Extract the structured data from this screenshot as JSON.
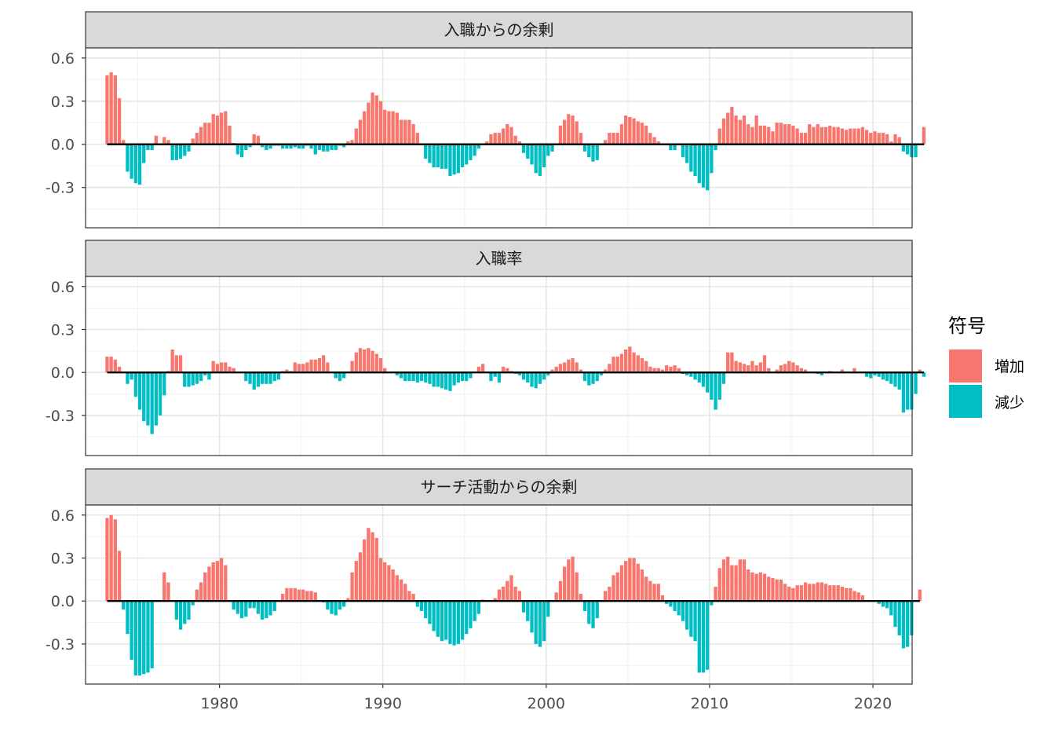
{
  "chart_data": {
    "type": "bar",
    "x_unit": "year (quarterly)",
    "x_start": 1973.0,
    "x_step": 0.25,
    "xlim": [
      1971.8,
      2022.4
    ],
    "ylim": [
      -0.58,
      0.67
    ],
    "x_ticks": [
      1980,
      1990,
      2000,
      2010,
      2020
    ],
    "x_tick_labels": [
      "1980",
      "1990",
      "2000",
      "2010",
      "2020"
    ],
    "y_ticks": [
      0.6,
      0.3,
      0.0,
      -0.3
    ],
    "y_tick_labels": [
      "0.6",
      "0.3",
      "0.0",
      "-0.3"
    ],
    "grid": true,
    "legend": {
      "title": "符号",
      "position": "right",
      "entries": [
        {
          "label": "増加",
          "color": "#F8766D"
        },
        {
          "label": "減少",
          "color": "#00BFC4"
        }
      ]
    },
    "panels": [
      {
        "title": "入職からの余剰",
        "values": [
          0.48,
          0.5,
          0.48,
          0.32,
          0.03,
          -0.19,
          -0.24,
          -0.27,
          -0.28,
          -0.13,
          -0.04,
          -0.04,
          0.06,
          0.0,
          0.05,
          0.03,
          -0.11,
          -0.11,
          -0.1,
          -0.08,
          -0.05,
          0.04,
          0.08,
          0.12,
          0.15,
          0.15,
          0.21,
          0.2,
          0.22,
          0.23,
          0.13,
          0.01,
          -0.07,
          -0.09,
          -0.04,
          -0.02,
          0.07,
          0.06,
          -0.02,
          -0.04,
          -0.03,
          -0.01,
          -0.01,
          -0.03,
          -0.03,
          -0.03,
          -0.02,
          -0.03,
          -0.03,
          -0.01,
          -0.03,
          -0.07,
          -0.04,
          -0.05,
          -0.05,
          -0.04,
          -0.04,
          -0.01,
          -0.02,
          0.02,
          0.03,
          0.11,
          0.17,
          0.23,
          0.29,
          0.36,
          0.34,
          0.3,
          0.24,
          0.23,
          0.23,
          0.22,
          0.17,
          0.17,
          0.17,
          0.14,
          0.08,
          0.0,
          -0.1,
          -0.13,
          -0.16,
          -0.16,
          -0.17,
          -0.17,
          -0.22,
          -0.21,
          -0.2,
          -0.16,
          -0.14,
          -0.11,
          -0.08,
          -0.03,
          0.0,
          0.02,
          0.07,
          0.08,
          0.08,
          0.11,
          0.14,
          0.12,
          0.06,
          0.02,
          -0.06,
          -0.1,
          -0.14,
          -0.2,
          -0.22,
          -0.16,
          -0.08,
          -0.05,
          0.0,
          0.13,
          0.17,
          0.21,
          0.2,
          0.16,
          0.08,
          -0.05,
          -0.09,
          -0.12,
          -0.11,
          0.0,
          0.03,
          0.08,
          0.08,
          0.08,
          0.14,
          0.2,
          0.19,
          0.18,
          0.16,
          0.15,
          0.13,
          0.08,
          0.05,
          0.02,
          0.0,
          0.0,
          -0.04,
          -0.04,
          0.0,
          -0.09,
          -0.13,
          -0.19,
          -0.22,
          -0.27,
          -0.3,
          -0.32,
          -0.2,
          -0.04,
          0.11,
          0.18,
          0.22,
          0.26,
          0.2,
          0.17,
          0.2,
          0.14,
          0.12,
          0.2,
          0.13,
          0.13,
          0.12,
          0.09,
          0.15,
          0.15,
          0.14,
          0.14,
          0.13,
          0.11,
          0.08,
          0.08,
          0.14,
          0.12,
          0.14,
          0.12,
          0.12,
          0.13,
          0.12,
          0.12,
          0.11,
          0.1,
          0.11,
          0.11,
          0.11,
          0.12,
          0.1,
          0.08,
          0.09,
          0.08,
          0.08,
          0.07,
          0.02,
          0.07,
          0.05,
          -0.05,
          -0.07,
          -0.09,
          -0.09,
          0.0,
          0.12
        ]
      },
      {
        "title": "入職率",
        "values": [
          0.11,
          0.11,
          0.09,
          0.04,
          0.0,
          -0.08,
          -0.05,
          -0.17,
          -0.26,
          -0.34,
          -0.37,
          -0.43,
          -0.37,
          -0.3,
          -0.16,
          0.01,
          0.16,
          0.12,
          0.12,
          -0.1,
          -0.1,
          -0.09,
          -0.08,
          -0.06,
          -0.02,
          -0.05,
          0.08,
          0.06,
          0.07,
          0.07,
          0.04,
          0.03,
          0.0,
          0.0,
          -0.06,
          -0.08,
          -0.12,
          -0.1,
          -0.08,
          -0.08,
          -0.08,
          -0.06,
          -0.05,
          0.01,
          0.02,
          0.01,
          0.07,
          0.06,
          0.06,
          0.07,
          0.09,
          0.09,
          0.1,
          0.12,
          0.07,
          0.0,
          -0.04,
          -0.06,
          -0.04,
          0.0,
          0.08,
          0.14,
          0.17,
          0.16,
          0.17,
          0.15,
          0.13,
          0.1,
          0.03,
          0.0,
          0.0,
          -0.02,
          -0.04,
          -0.06,
          -0.06,
          -0.06,
          -0.07,
          -0.06,
          -0.07,
          -0.08,
          -0.1,
          -0.1,
          -0.11,
          -0.12,
          -0.13,
          -0.09,
          -0.07,
          -0.06,
          -0.06,
          -0.04,
          0.0,
          0.04,
          0.06,
          0.0,
          -0.06,
          -0.03,
          -0.07,
          0.04,
          0.03,
          0.01,
          -0.01,
          -0.02,
          -0.05,
          -0.07,
          -0.1,
          -0.11,
          -0.08,
          -0.05,
          -0.02,
          0.02,
          0.04,
          0.06,
          0.07,
          0.09,
          0.1,
          0.07,
          0.02,
          -0.06,
          -0.09,
          -0.08,
          -0.06,
          -0.02,
          0.02,
          0.06,
          0.11,
          0.11,
          0.13,
          0.16,
          0.18,
          0.14,
          0.12,
          0.1,
          0.08,
          0.04,
          0.03,
          0.03,
          0.02,
          0.05,
          0.04,
          0.05,
          0.03,
          -0.01,
          -0.02,
          -0.03,
          -0.05,
          -0.07,
          -0.1,
          -0.14,
          -0.19,
          -0.26,
          -0.19,
          -0.08,
          0.14,
          0.14,
          0.08,
          0.07,
          0.06,
          0.05,
          0.08,
          0.05,
          0.07,
          0.12,
          0.03,
          0.0,
          0.02,
          0.05,
          0.06,
          0.08,
          0.07,
          0.05,
          0.03,
          0.02,
          0.0,
          0.0,
          -0.01,
          -0.02,
          0.0,
          0.01,
          0.0,
          0.0,
          0.02,
          0.0,
          0.0,
          0.03,
          0.0,
          0.0,
          -0.03,
          -0.04,
          -0.02,
          -0.03,
          -0.05,
          -0.06,
          -0.08,
          -0.1,
          -0.12,
          -0.28,
          -0.26,
          -0.26,
          -0.15,
          0.02,
          -0.03
        ]
      },
      {
        "title": "サーチ活動からの余剰",
        "values": [
          0.58,
          0.6,
          0.57,
          0.35,
          -0.06,
          -0.23,
          -0.41,
          -0.52,
          -0.52,
          -0.51,
          -0.5,
          -0.47,
          0.0,
          0.0,
          0.2,
          0.13,
          0.0,
          -0.13,
          -0.2,
          -0.16,
          -0.13,
          -0.03,
          0.08,
          0.13,
          0.2,
          0.24,
          0.27,
          0.28,
          0.3,
          0.25,
          0.0,
          -0.06,
          -0.09,
          -0.12,
          -0.11,
          -0.05,
          -0.05,
          -0.09,
          -0.13,
          -0.12,
          -0.1,
          -0.07,
          0.0,
          0.05,
          0.09,
          0.09,
          0.09,
          0.08,
          0.08,
          0.07,
          0.07,
          0.06,
          0.0,
          -0.01,
          -0.06,
          -0.09,
          -0.1,
          -0.06,
          -0.04,
          0.02,
          0.2,
          0.28,
          0.34,
          0.43,
          0.51,
          0.48,
          0.44,
          0.3,
          0.27,
          0.25,
          0.22,
          0.18,
          0.15,
          0.12,
          0.07,
          0.05,
          -0.04,
          -0.07,
          -0.12,
          -0.16,
          -0.21,
          -0.25,
          -0.28,
          -0.27,
          -0.3,
          -0.31,
          -0.3,
          -0.27,
          -0.23,
          -0.19,
          -0.14,
          -0.09,
          0.01,
          0.0,
          0.0,
          0.02,
          0.08,
          0.1,
          0.14,
          0.18,
          0.1,
          0.07,
          -0.08,
          -0.14,
          -0.22,
          -0.3,
          -0.32,
          -0.28,
          -0.11,
          0.0,
          0.06,
          0.14,
          0.24,
          0.29,
          0.31,
          0.2,
          0.05,
          -0.07,
          -0.16,
          -0.19,
          -0.12,
          0.0,
          0.07,
          0.1,
          0.18,
          0.2,
          0.25,
          0.28,
          0.3,
          0.3,
          0.26,
          0.22,
          0.17,
          0.14,
          0.12,
          0.12,
          0.04,
          -0.02,
          -0.04,
          -0.07,
          -0.1,
          -0.14,
          -0.2,
          -0.25,
          -0.28,
          -0.5,
          -0.5,
          -0.48,
          -0.03,
          0.1,
          0.23,
          0.29,
          0.31,
          0.25,
          0.25,
          0.29,
          0.29,
          0.22,
          0.2,
          0.19,
          0.2,
          0.19,
          0.17,
          0.16,
          0.15,
          0.15,
          0.12,
          0.1,
          0.09,
          0.11,
          0.11,
          0.13,
          0.12,
          0.12,
          0.13,
          0.13,
          0.12,
          0.11,
          0.11,
          0.11,
          0.1,
          0.09,
          0.09,
          0.07,
          0.06,
          0.04,
          0.0,
          0.0,
          0.0,
          -0.02,
          -0.04,
          -0.05,
          -0.1,
          -0.18,
          -0.24,
          -0.33,
          -0.32,
          -0.24,
          0.0,
          0.08
        ]
      }
    ]
  }
}
